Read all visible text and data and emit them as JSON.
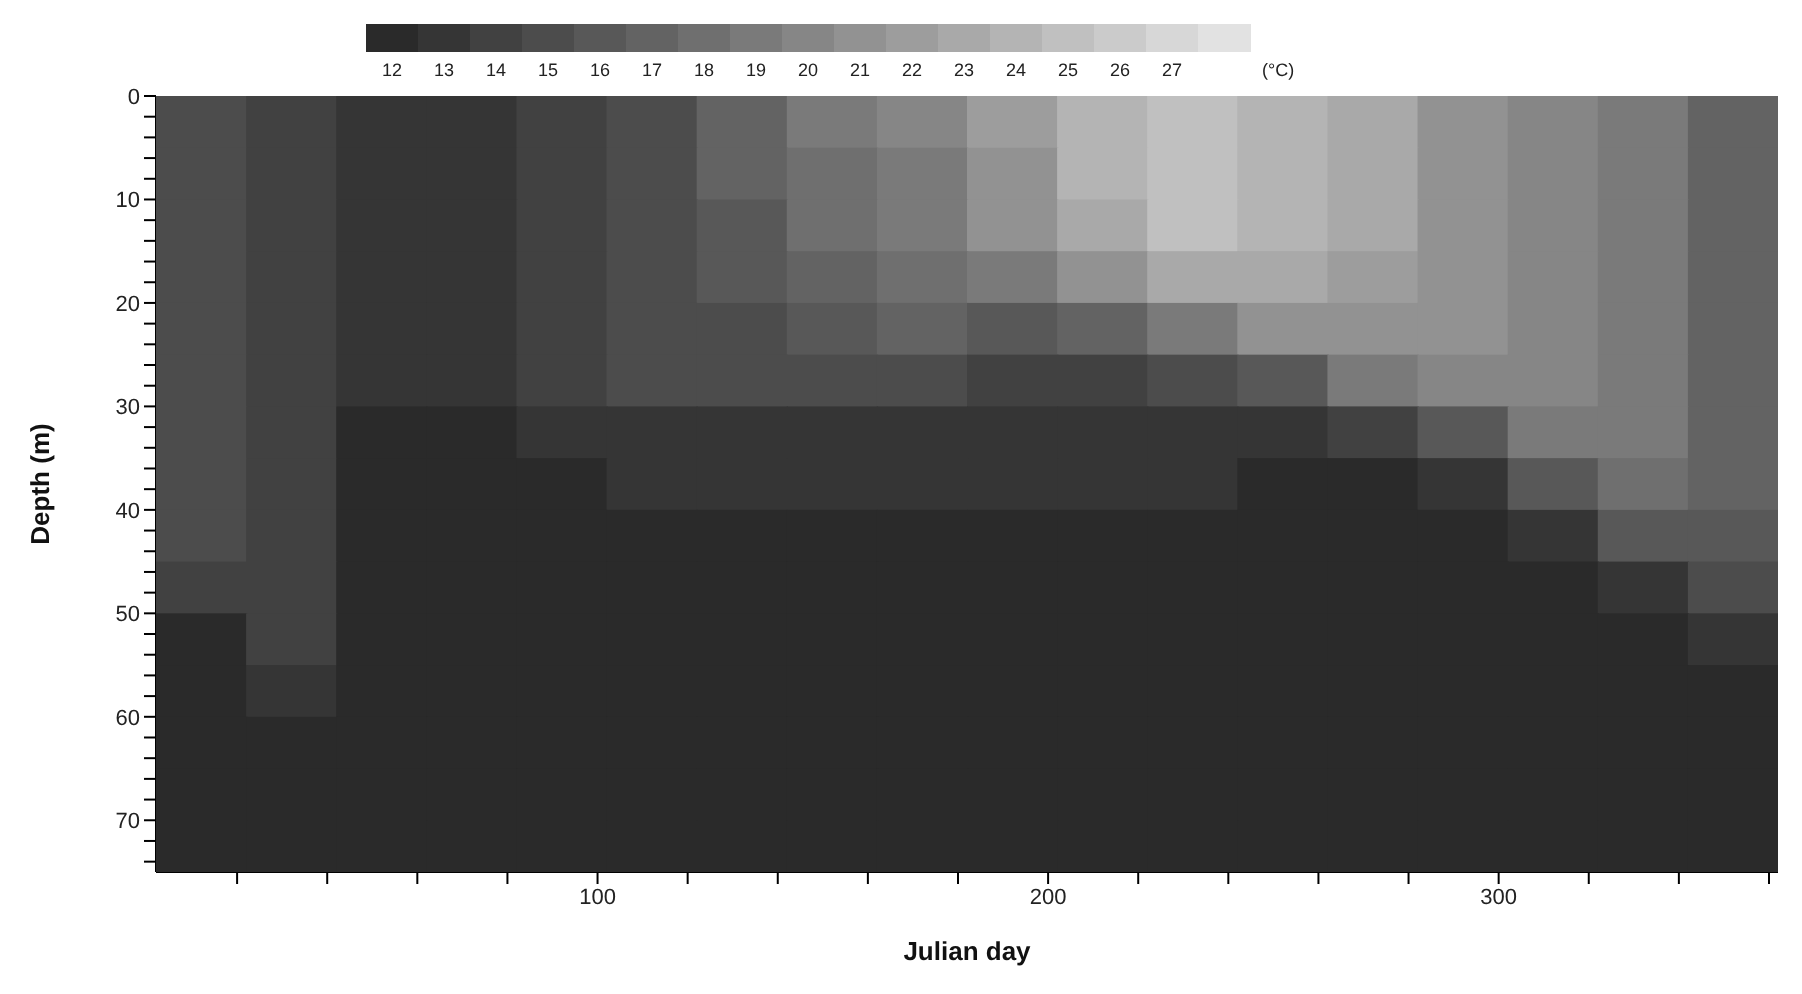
{
  "chart_data": {
    "type": "heatmap",
    "xlabel": "Julian day",
    "ylabel": "Depth (m)",
    "clabel": "(°C)",
    "x": [
      12,
      32,
      52,
      72,
      92,
      112,
      132,
      152,
      172,
      192,
      212,
      232,
      252,
      272,
      292,
      312,
      332,
      352
    ],
    "xlim": [
      2,
      362
    ],
    "ylim": [
      75,
      0
    ],
    "xticks": [
      {
        "value": 20,
        "label": null
      },
      {
        "value": 40,
        "label": null
      },
      {
        "value": 60,
        "label": null
      },
      {
        "value": 80,
        "label": null
      },
      100,
      {
        "value": 120,
        "label": null
      },
      {
        "value": 140,
        "label": null
      },
      {
        "value": 160,
        "label": null
      },
      {
        "value": 180,
        "label": null
      },
      200,
      {
        "value": 220,
        "label": null
      },
      {
        "value": 240,
        "label": null
      },
      {
        "value": 260,
        "label": null
      },
      {
        "value": 280,
        "label": null
      },
      300,
      {
        "value": 320,
        "label": null
      },
      {
        "value": 340,
        "label": null
      },
      {
        "value": 360,
        "label": null
      }
    ],
    "yticks": [
      0,
      {
        "value": 2,
        "label": null
      },
      {
        "value": 4,
        "label": null
      },
      {
        "value": 6,
        "label": null
      },
      {
        "value": 8,
        "label": null
      },
      10,
      {
        "value": 12,
        "label": null
      },
      {
        "value": 14,
        "label": null
      },
      {
        "value": 16,
        "label": null
      },
      {
        "value": 18,
        "label": null
      },
      20,
      {
        "value": 22,
        "label": null
      },
      {
        "value": 24,
        "label": null
      },
      {
        "value": 26,
        "label": null
      },
      {
        "value": 28,
        "label": null
      },
      30,
      {
        "value": 32,
        "label": null
      },
      {
        "value": 34,
        "label": null
      },
      {
        "value": 36,
        "label": null
      },
      {
        "value": 38,
        "label": null
      },
      40,
      {
        "value": 42,
        "label": null
      },
      {
        "value": 44,
        "label": null
      },
      {
        "value": 46,
        "label": null
      },
      {
        "value": 48,
        "label": null
      },
      50,
      {
        "value": 52,
        "label": null
      },
      {
        "value": 54,
        "label": null
      },
      {
        "value": 56,
        "label": null
      },
      {
        "value": 58,
        "label": null
      },
      60,
      {
        "value": 62,
        "label": null
      },
      {
        "value": 64,
        "label": null
      },
      {
        "value": 66,
        "label": null
      },
      {
        "value": 68,
        "label": null
      },
      70,
      {
        "value": 72,
        "label": null
      },
      {
        "value": 74,
        "label": null
      }
    ],
    "clim": [
      11.5,
      28.5
    ],
    "cticks": [
      12,
      13,
      14,
      15,
      16,
      17,
      18,
      19,
      20,
      21,
      22,
      23,
      24,
      25,
      26,
      27
    ],
    "cells": [
      [
        15,
        14,
        13,
        13,
        14,
        15,
        17,
        19,
        20,
        22,
        24,
        25,
        24,
        23,
        21,
        20,
        19,
        17
      ],
      [
        15,
        14,
        13,
        13,
        14,
        15,
        17,
        18,
        19,
        21,
        24,
        25,
        24,
        23,
        21,
        20,
        19,
        17
      ],
      [
        15,
        14,
        13,
        13,
        14,
        15,
        16,
        18,
        19,
        21,
        23,
        25,
        24,
        23,
        21,
        20,
        19,
        17
      ],
      [
        15,
        14,
        13,
        13,
        14,
        15,
        16,
        17,
        18,
        19,
        21,
        23,
        23,
        22,
        21,
        20,
        19,
        17
      ],
      [
        15,
        14,
        13,
        13,
        14,
        15,
        15,
        16,
        17,
        16,
        17,
        19,
        21,
        21,
        21,
        20,
        19,
        17
      ],
      [
        15,
        14,
        13,
        13,
        14,
        15,
        15,
        15,
        15,
        14,
        14,
        15,
        16,
        19,
        20,
        20,
        19,
        17
      ],
      [
        15,
        14,
        12,
        12,
        13,
        13,
        13,
        13,
        13,
        13,
        13,
        13,
        13,
        14,
        16,
        19,
        19,
        17
      ],
      [
        15,
        14,
        12,
        12,
        12,
        13,
        13,
        13,
        13,
        13,
        13,
        13,
        12,
        12,
        13,
        16,
        18,
        17
      ],
      [
        15,
        14,
        12,
        12,
        12,
        12,
        12,
        12,
        12,
        12,
        12,
        12,
        12,
        12,
        12,
        13,
        16,
        16
      ],
      [
        14,
        14,
        12,
        12,
        12,
        12,
        12,
        12,
        12,
        12,
        12,
        12,
        12,
        12,
        12,
        12,
        13,
        15
      ],
      [
        12,
        14,
        12,
        12,
        12,
        12,
        12,
        12,
        12,
        12,
        12,
        12,
        12,
        12,
        12,
        12,
        12,
        13
      ],
      [
        12,
        13,
        12,
        12,
        12,
        12,
        12,
        12,
        12,
        12,
        12,
        12,
        12,
        12,
        12,
        12,
        12,
        12
      ],
      [
        12,
        12,
        12,
        12,
        12,
        12,
        12,
        12,
        12,
        12,
        12,
        12,
        12,
        12,
        12,
        12,
        12,
        12
      ],
      [
        12,
        12,
        12,
        12,
        12,
        12,
        12,
        12,
        12,
        12,
        12,
        12,
        12,
        12,
        12,
        12,
        12,
        12
      ],
      [
        12,
        12,
        12,
        12,
        12,
        12,
        12,
        12,
        12,
        12,
        12,
        12,
        12,
        12,
        12,
        12,
        12,
        12
      ]
    ]
  }
}
